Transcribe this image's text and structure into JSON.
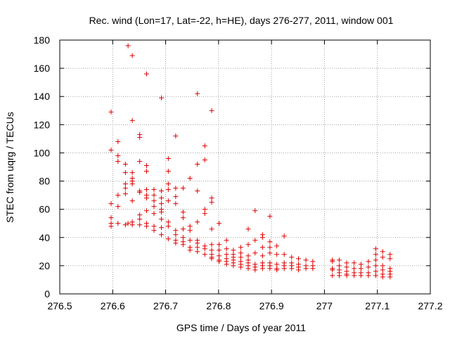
{
  "chart_data": {
    "type": "scatter",
    "title": "Rec. wind (Lon=17, Lat=-22, h=HE), days 276-277, 2011, window 001",
    "xlabel": "GPS time / Days of year 2011",
    "ylabel": "STEC from uqrg / TECUs",
    "xlim": [
      276.5,
      277.2
    ],
    "ylim": [
      0,
      180
    ],
    "xticks": [
      "276.5",
      "276.6",
      "276.7",
      "276.8",
      "276.9",
      "277",
      "277.1",
      "277.2"
    ],
    "yticks": [
      "0",
      "20",
      "40",
      "60",
      "80",
      "100",
      "120",
      "140",
      "160",
      "180"
    ],
    "grid": true,
    "marker": "+",
    "color": "#e00000",
    "series": [
      {
        "points": [
          [
            276.597,
            129
          ],
          [
            276.597,
            102
          ],
          [
            276.597,
            64
          ],
          [
            276.597,
            54
          ],
          [
            276.597,
            50
          ],
          [
            276.597,
            48
          ],
          [
            276.61,
            108
          ],
          [
            276.61,
            98
          ],
          [
            276.61,
            94
          ],
          [
            276.61,
            70
          ],
          [
            276.61,
            62
          ],
          [
            276.61,
            50
          ],
          [
            276.624,
            92
          ],
          [
            276.624,
            86
          ],
          [
            276.624,
            78
          ],
          [
            276.624,
            75
          ],
          [
            276.624,
            71
          ],
          [
            276.624,
            49
          ],
          [
            276.629,
            176
          ],
          [
            276.629,
            50
          ],
          [
            276.637,
            169
          ],
          [
            276.637,
            123
          ],
          [
            276.637,
            86
          ],
          [
            276.637,
            82
          ],
          [
            276.637,
            80
          ],
          [
            276.637,
            78
          ],
          [
            276.637,
            66
          ],
          [
            276.637,
            51
          ],
          [
            276.637,
            49
          ],
          [
            276.651,
            113
          ],
          [
            276.651,
            111
          ],
          [
            276.651,
            94
          ],
          [
            276.651,
            73
          ],
          [
            276.651,
            72
          ],
          [
            276.651,
            56
          ],
          [
            276.651,
            53
          ],
          [
            276.651,
            49
          ],
          [
            276.664,
            156
          ],
          [
            276.664,
            91
          ],
          [
            276.664,
            87
          ],
          [
            276.664,
            74
          ],
          [
            276.664,
            70
          ],
          [
            276.664,
            68
          ],
          [
            276.664,
            59
          ],
          [
            276.664,
            50
          ],
          [
            276.664,
            48
          ],
          [
            276.678,
            74
          ],
          [
            276.678,
            70
          ],
          [
            276.678,
            66
          ],
          [
            276.678,
            62
          ],
          [
            276.678,
            57
          ],
          [
            276.678,
            48
          ],
          [
            276.678,
            45
          ],
          [
            276.692,
            139
          ],
          [
            276.692,
            73
          ],
          [
            276.692,
            68
          ],
          [
            276.692,
            64
          ],
          [
            276.692,
            60
          ],
          [
            276.692,
            58
          ],
          [
            276.692,
            53
          ],
          [
            276.692,
            47
          ],
          [
            276.692,
            42
          ],
          [
            276.705,
            96
          ],
          [
            276.705,
            87
          ],
          [
            276.705,
            78
          ],
          [
            276.705,
            74
          ],
          [
            276.705,
            66
          ],
          [
            276.705,
            51
          ],
          [
            276.705,
            48
          ],
          [
            276.705,
            39
          ],
          [
            276.719,
            112
          ],
          [
            276.719,
            75
          ],
          [
            276.719,
            69
          ],
          [
            276.719,
            64
          ],
          [
            276.719,
            45
          ],
          [
            276.719,
            42
          ],
          [
            276.719,
            38
          ],
          [
            276.719,
            36
          ],
          [
            276.733,
            75
          ],
          [
            276.733,
            58
          ],
          [
            276.733,
            54
          ],
          [
            276.733,
            46
          ],
          [
            276.733,
            40
          ],
          [
            276.733,
            37
          ],
          [
            276.733,
            35
          ],
          [
            276.746,
            82
          ],
          [
            276.746,
            48
          ],
          [
            276.746,
            45
          ],
          [
            276.746,
            38
          ],
          [
            276.746,
            33
          ],
          [
            276.746,
            31
          ],
          [
            276.76,
            142
          ],
          [
            276.76,
            92
          ],
          [
            276.76,
            73
          ],
          [
            276.76,
            51
          ],
          [
            276.76,
            38
          ],
          [
            276.76,
            36
          ],
          [
            276.76,
            33
          ],
          [
            276.76,
            30
          ],
          [
            276.774,
            105
          ],
          [
            276.774,
            95
          ],
          [
            276.774,
            60
          ],
          [
            276.774,
            57
          ],
          [
            276.774,
            34
          ],
          [
            276.774,
            32
          ],
          [
            276.774,
            28
          ],
          [
            276.787,
            130
          ],
          [
            276.787,
            68
          ],
          [
            276.787,
            65
          ],
          [
            276.787,
            46
          ],
          [
            276.787,
            35
          ],
          [
            276.787,
            31
          ],
          [
            276.787,
            28
          ],
          [
            276.787,
            26
          ],
          [
            276.787,
            25
          ],
          [
            276.801,
            50
          ],
          [
            276.801,
            35
          ],
          [
            276.801,
            31
          ],
          [
            276.801,
            27
          ],
          [
            276.801,
            24
          ],
          [
            276.801,
            23
          ],
          [
            276.815,
            38
          ],
          [
            276.815,
            32
          ],
          [
            276.815,
            28
          ],
          [
            276.815,
            25
          ],
          [
            276.815,
            23
          ],
          [
            276.815,
            21
          ],
          [
            276.828,
            31
          ],
          [
            276.828,
            28
          ],
          [
            276.828,
            26
          ],
          [
            276.828,
            24
          ],
          [
            276.828,
            22
          ],
          [
            276.828,
            20
          ],
          [
            276.842,
            33
          ],
          [
            276.842,
            29
          ],
          [
            276.842,
            26
          ],
          [
            276.842,
            23
          ],
          [
            276.842,
            21
          ],
          [
            276.842,
            19
          ],
          [
            276.856,
            46
          ],
          [
            276.856,
            35
          ],
          [
            276.856,
            27
          ],
          [
            276.856,
            24
          ],
          [
            276.856,
            22
          ],
          [
            276.856,
            20
          ],
          [
            276.856,
            18
          ],
          [
            276.869,
            59
          ],
          [
            276.869,
            38
          ],
          [
            276.869,
            29
          ],
          [
            276.869,
            21
          ],
          [
            276.869,
            19
          ],
          [
            276.869,
            17
          ],
          [
            276.883,
            42
          ],
          [
            276.883,
            40
          ],
          [
            276.883,
            33
          ],
          [
            276.883,
            27
          ],
          [
            276.883,
            22
          ],
          [
            276.883,
            20
          ],
          [
            276.883,
            18
          ],
          [
            276.897,
            55
          ],
          [
            276.897,
            37
          ],
          [
            276.897,
            33
          ],
          [
            276.897,
            29
          ],
          [
            276.897,
            22
          ],
          [
            276.897,
            20
          ],
          [
            276.897,
            18
          ],
          [
            276.91,
            34
          ],
          [
            276.91,
            28
          ],
          [
            276.91,
            21
          ],
          [
            276.91,
            18
          ],
          [
            276.91,
            17
          ],
          [
            276.924,
            41
          ],
          [
            276.924,
            28
          ],
          [
            276.924,
            22
          ],
          [
            276.924,
            20
          ],
          [
            276.924,
            18
          ],
          [
            276.938,
            26
          ],
          [
            276.938,
            22
          ],
          [
            276.938,
            20
          ],
          [
            276.938,
            18
          ],
          [
            276.951,
            25
          ],
          [
            276.951,
            21
          ],
          [
            276.951,
            19
          ],
          [
            276.951,
            17
          ],
          [
            276.965,
            24
          ],
          [
            276.965,
            20
          ],
          [
            276.965,
            18
          ],
          [
            276.978,
            23
          ],
          [
            276.978,
            20
          ],
          [
            276.978,
            18
          ],
          [
            277.015,
            24
          ],
          [
            277.015,
            23
          ],
          [
            277.015,
            18
          ],
          [
            277.015,
            17
          ],
          [
            277.015,
            13
          ],
          [
            277.028,
            24
          ],
          [
            277.028,
            20
          ],
          [
            277.028,
            17
          ],
          [
            277.028,
            15
          ],
          [
            277.028,
            13
          ],
          [
            277.042,
            22
          ],
          [
            277.042,
            19
          ],
          [
            277.042,
            16
          ],
          [
            277.042,
            14
          ],
          [
            277.042,
            13
          ],
          [
            277.056,
            22
          ],
          [
            277.056,
            18
          ],
          [
            277.056,
            15
          ],
          [
            277.056,
            13
          ],
          [
            277.069,
            21
          ],
          [
            277.069,
            18
          ],
          [
            277.069,
            15
          ],
          [
            277.069,
            13
          ],
          [
            277.083,
            23
          ],
          [
            277.083,
            19
          ],
          [
            277.083,
            15
          ],
          [
            277.083,
            13
          ],
          [
            277.097,
            32
          ],
          [
            277.097,
            28
          ],
          [
            277.097,
            24
          ],
          [
            277.097,
            20
          ],
          [
            277.097,
            16
          ],
          [
            277.097,
            13
          ],
          [
            277.11,
            30
          ],
          [
            277.11,
            26
          ],
          [
            277.11,
            20
          ],
          [
            277.11,
            17
          ],
          [
            277.11,
            14
          ],
          [
            277.11,
            12
          ],
          [
            277.124,
            28
          ],
          [
            277.124,
            25
          ],
          [
            277.124,
            18
          ],
          [
            277.124,
            16
          ],
          [
            277.124,
            14
          ],
          [
            277.124,
            12
          ]
        ]
      }
    ]
  }
}
